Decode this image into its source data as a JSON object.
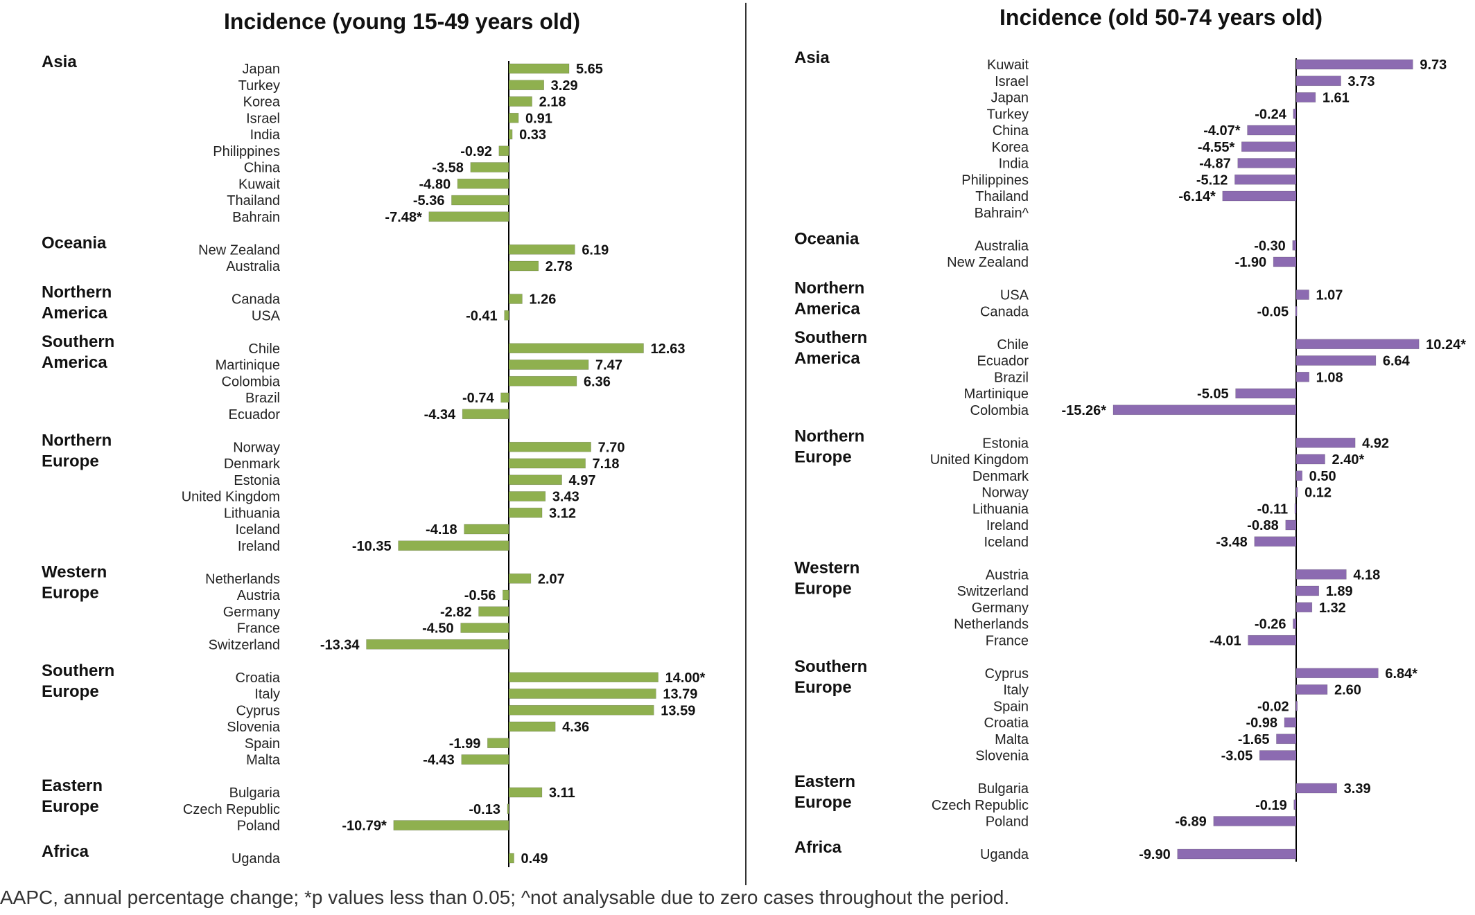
{
  "footnote": "AAPC, annual percentage change; *p values less than 0.05; ^not analysable due to zero cases throughout the period.",
  "chart_data": [
    {
      "type": "bar",
      "orientation": "horizontal",
      "title": "Incidence (young 15-49 years old)",
      "color": "#8fb04f",
      "groups": [
        {
          "region": "Asia",
          "items": [
            {
              "country": "Japan",
              "value": 5.65,
              "label": "5.65"
            },
            {
              "country": "Turkey",
              "value": 3.29,
              "label": "3.29"
            },
            {
              "country": "Korea",
              "value": 2.18,
              "label": "2.18"
            },
            {
              "country": "Israel",
              "value": 0.91,
              "label": "0.91"
            },
            {
              "country": "India",
              "value": 0.33,
              "label": "0.33"
            },
            {
              "country": "Philippines",
              "value": -0.92,
              "label": "-0.92"
            },
            {
              "country": "China",
              "value": -3.58,
              "label": "-3.58"
            },
            {
              "country": "Kuwait",
              "value": -4.8,
              "label": "-4.80"
            },
            {
              "country": "Thailand",
              "value": -5.36,
              "label": "-5.36"
            },
            {
              "country": "Bahrain",
              "value": -7.48,
              "label": "-7.48*"
            }
          ]
        },
        {
          "region": "Oceania",
          "items": [
            {
              "country": "New Zealand",
              "value": 6.19,
              "label": "6.19"
            },
            {
              "country": "Australia",
              "value": 2.78,
              "label": "2.78"
            }
          ]
        },
        {
          "region": "Northern America",
          "items": [
            {
              "country": "Canada",
              "value": 1.26,
              "label": "1.26"
            },
            {
              "country": "USA",
              "value": -0.41,
              "label": "-0.41"
            }
          ]
        },
        {
          "region": "Southern America",
          "items": [
            {
              "country": "Chile",
              "value": 12.63,
              "label": "12.63"
            },
            {
              "country": "Martinique",
              "value": 7.47,
              "label": "7.47"
            },
            {
              "country": "Colombia",
              "value": 6.36,
              "label": "6.36"
            },
            {
              "country": "Brazil",
              "value": -0.74,
              "label": "-0.74"
            },
            {
              "country": "Ecuador",
              "value": -4.34,
              "label": "-4.34"
            }
          ]
        },
        {
          "region": "Northern Europe",
          "items": [
            {
              "country": "Norway",
              "value": 7.7,
              "label": "7.70"
            },
            {
              "country": "Denmark",
              "value": 7.18,
              "label": "7.18"
            },
            {
              "country": "Estonia",
              "value": 4.97,
              "label": "4.97"
            },
            {
              "country": "United Kingdom",
              "value": 3.43,
              "label": "3.43"
            },
            {
              "country": "Lithuania",
              "value": 3.12,
              "label": "3.12"
            },
            {
              "country": "Iceland",
              "value": -4.18,
              "label": "-4.18"
            },
            {
              "country": "Ireland",
              "value": -10.35,
              "label": "-10.35"
            }
          ]
        },
        {
          "region": "Western Europe",
          "items": [
            {
              "country": "Netherlands",
              "value": 2.07,
              "label": "2.07"
            },
            {
              "country": "Austria",
              "value": -0.56,
              "label": "-0.56"
            },
            {
              "country": "Germany",
              "value": -2.82,
              "label": "-2.82"
            },
            {
              "country": "France",
              "value": -4.5,
              "label": "-4.50"
            },
            {
              "country": "Switzerland",
              "value": -13.34,
              "label": "-13.34"
            }
          ]
        },
        {
          "region": "Southern Europe",
          "items": [
            {
              "country": "Croatia",
              "value": 14.0,
              "label": "14.00*"
            },
            {
              "country": "Italy",
              "value": 13.79,
              "label": "13.79"
            },
            {
              "country": "Cyprus",
              "value": 13.59,
              "label": "13.59"
            },
            {
              "country": "Slovenia",
              "value": 4.36,
              "label": "4.36"
            },
            {
              "country": "Spain",
              "value": -1.99,
              "label": "-1.99"
            },
            {
              "country": "Malta",
              "value": -4.43,
              "label": "-4.43"
            }
          ]
        },
        {
          "region": "Eastern Europe",
          "items": [
            {
              "country": "Bulgaria",
              "value": 3.11,
              "label": "3.11"
            },
            {
              "country": "Czech Republic",
              "value": -0.13,
              "label": "-0.13"
            },
            {
              "country": "Poland",
              "value": -10.79,
              "label": "-10.79*"
            }
          ]
        },
        {
          "region": "Africa",
          "items": [
            {
              "country": "Uganda",
              "value": 0.49,
              "label": "0.49"
            }
          ]
        }
      ]
    },
    {
      "type": "bar",
      "orientation": "horizontal",
      "title": "Incidence (old 50-74 years old)",
      "color": "#8c6bb1",
      "groups": [
        {
          "region": "Asia",
          "items": [
            {
              "country": "Kuwait",
              "value": 9.73,
              "label": "9.73"
            },
            {
              "country": "Israel",
              "value": 3.73,
              "label": "3.73"
            },
            {
              "country": "Japan",
              "value": 1.61,
              "label": "1.61"
            },
            {
              "country": "Turkey",
              "value": -0.24,
              "label": "-0.24"
            },
            {
              "country": "China",
              "value": -4.07,
              "label": "-4.07*"
            },
            {
              "country": "Korea",
              "value": -4.55,
              "label": "-4.55*"
            },
            {
              "country": "India",
              "value": -4.87,
              "label": "-4.87"
            },
            {
              "country": "Philippines",
              "value": -5.12,
              "label": "-5.12"
            },
            {
              "country": "Thailand",
              "value": -6.14,
              "label": "-6.14*"
            },
            {
              "country": "Bahrain^",
              "value": null,
              "label": ""
            }
          ]
        },
        {
          "region": "Oceania",
          "items": [
            {
              "country": "Australia",
              "value": -0.3,
              "label": "-0.30"
            },
            {
              "country": "New Zealand",
              "value": -1.9,
              "label": "-1.90"
            }
          ]
        },
        {
          "region": "Northern America",
          "items": [
            {
              "country": "USA",
              "value": 1.07,
              "label": "1.07"
            },
            {
              "country": "Canada",
              "value": -0.05,
              "label": "-0.05"
            }
          ]
        },
        {
          "region": "Southern America",
          "items": [
            {
              "country": "Chile",
              "value": 10.24,
              "label": "10.24*"
            },
            {
              "country": "Ecuador",
              "value": 6.64,
              "label": "6.64"
            },
            {
              "country": "Brazil",
              "value": 1.08,
              "label": "1.08"
            },
            {
              "country": "Martinique",
              "value": -5.05,
              "label": "-5.05"
            },
            {
              "country": "Colombia",
              "value": -15.26,
              "label": "-15.26*"
            }
          ]
        },
        {
          "region": "Northern Europe",
          "items": [
            {
              "country": "Estonia",
              "value": 4.92,
              "label": "4.92"
            },
            {
              "country": "United Kingdom",
              "value": 2.4,
              "label": "2.40*"
            },
            {
              "country": "Denmark",
              "value": 0.5,
              "label": "0.50"
            },
            {
              "country": "Norway",
              "value": 0.12,
              "label": "0.12"
            },
            {
              "country": "Lithuania",
              "value": -0.11,
              "label": "-0.11"
            },
            {
              "country": "Ireland",
              "value": -0.88,
              "label": "-0.88"
            },
            {
              "country": "Iceland",
              "value": -3.48,
              "label": "-3.48"
            }
          ]
        },
        {
          "region": "Western Europe",
          "items": [
            {
              "country": "Austria",
              "value": 4.18,
              "label": "4.18"
            },
            {
              "country": "Switzerland",
              "value": 1.89,
              "label": "1.89"
            },
            {
              "country": "Germany",
              "value": 1.32,
              "label": "1.32"
            },
            {
              "country": "Netherlands",
              "value": -0.26,
              "label": "-0.26"
            },
            {
              "country": "France",
              "value": -4.01,
              "label": "-4.01"
            }
          ]
        },
        {
          "region": "Southern Europe",
          "items": [
            {
              "country": "Cyprus",
              "value": 6.84,
              "label": "6.84*"
            },
            {
              "country": "Italy",
              "value": 2.6,
              "label": "2.60"
            },
            {
              "country": "Spain",
              "value": -0.02,
              "label": "-0.02"
            },
            {
              "country": "Croatia",
              "value": -0.98,
              "label": "-0.98"
            },
            {
              "country": "Malta",
              "value": -1.65,
              "label": "-1.65"
            },
            {
              "country": "Slovenia",
              "value": -3.05,
              "label": "-3.05"
            }
          ]
        },
        {
          "region": "Eastern Europe",
          "items": [
            {
              "country": "Bulgaria",
              "value": 3.39,
              "label": "3.39"
            },
            {
              "country": "Czech Republic",
              "value": -0.19,
              "label": "-0.19"
            },
            {
              "country": "Poland",
              "value": -6.89,
              "label": "-6.89"
            }
          ]
        },
        {
          "region": "Africa",
          "items": [
            {
              "country": "Uganda",
              "value": -9.9,
              "label": "-9.90"
            }
          ]
        }
      ]
    }
  ]
}
